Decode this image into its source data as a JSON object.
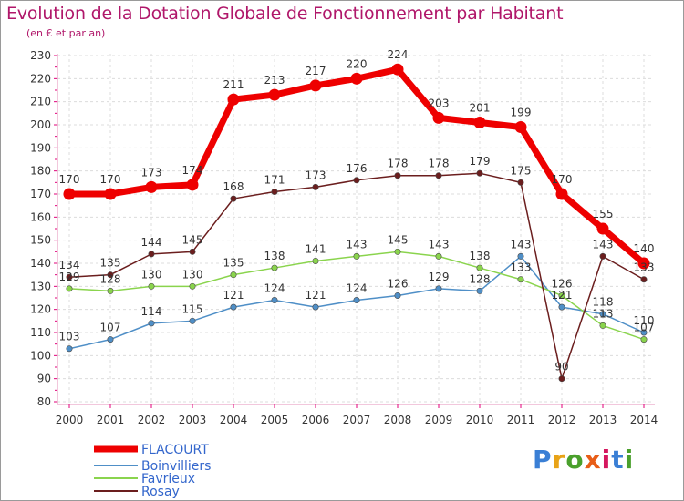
{
  "title": "Evolution de la Dotation Globale de Fonctionnement par Habitant",
  "subtitle": "(en € et par an)",
  "logo": {
    "text": "Proxiti",
    "colors": [
      "#3a7fd5",
      "#e8a317",
      "#4aa02c",
      "#e85d17",
      "#d5175f",
      "#3a7fd5",
      "#4aa02c"
    ]
  },
  "chart_data": {
    "type": "line",
    "title": "Evolution de la Dotation Globale de Fonctionnement par Habitant",
    "subtitle": "(en € et par an)",
    "xlabel": "",
    "ylabel": "",
    "ylim": [
      80,
      230
    ],
    "yticks": [
      80,
      90,
      100,
      110,
      120,
      130,
      140,
      150,
      160,
      170,
      180,
      190,
      200,
      210,
      220,
      230
    ],
    "grid": true,
    "legend_position": "bottom-left",
    "x": [
      "2000",
      "2001",
      "2002",
      "2003",
      "2004",
      "2005",
      "2006",
      "2007",
      "2008",
      "2009",
      "2010",
      "2011",
      "2012",
      "2013",
      "2014"
    ],
    "series": [
      {
        "name": "FLACOURT",
        "color": "#ee0000",
        "values": [
          170,
          170,
          173,
          174,
          211,
          213,
          217,
          220,
          224,
          203,
          201,
          199,
          170,
          155,
          140
        ]
      },
      {
        "name": "Boinvilliers",
        "color": "#4f8fc7",
        "values": [
          103,
          107,
          114,
          115,
          121,
          124,
          121,
          124,
          126,
          129,
          128,
          143,
          121,
          118,
          110
        ]
      },
      {
        "name": "Favrieux",
        "color": "#8ad44d",
        "values": [
          129,
          128,
          130,
          130,
          135,
          138,
          141,
          143,
          145,
          143,
          138,
          133,
          126,
          113,
          107
        ]
      },
      {
        "name": "Rosay",
        "color": "#6b1e1e",
        "values": [
          134,
          135,
          144,
          145,
          168,
          171,
          173,
          176,
          178,
          178,
          179,
          175,
          90,
          143,
          133
        ]
      }
    ]
  }
}
